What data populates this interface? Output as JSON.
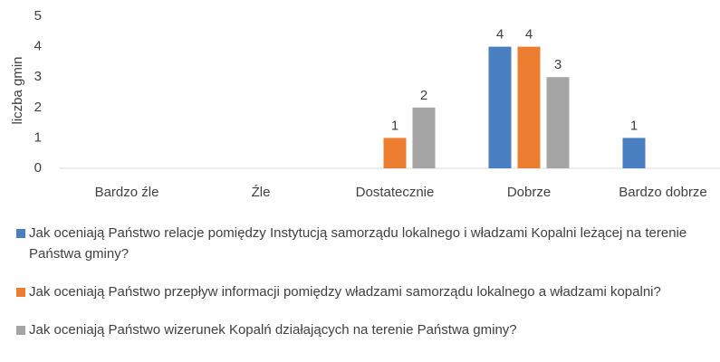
{
  "chart_data": {
    "type": "bar",
    "y_label": "liczba gmin",
    "categories": [
      "Bardzo źle",
      "Źle",
      "Dostatecznie",
      "Dobrze",
      "Bardzo dobrze"
    ],
    "series": [
      {
        "name": "Jak oceniają Państwo relacje pomiędzy Instytucją samorządu lokalnego i władzami Kopalni leżącej na terenie Państwa gminy?",
        "color": "#4a7fc1",
        "values": [
          0,
          0,
          0,
          4,
          1
        ]
      },
      {
        "name": "Jak oceniają Państwo przepływ informacji pomiędzy władzami samorządu lokalnego a władzami kopalni?",
        "color": "#ed7d31",
        "values": [
          0,
          0,
          1,
          4,
          0
        ]
      },
      {
        "name": "Jak oceniają Państwo wizerunek Kopalń działających na terenie Państwa gminy?",
        "color": "#a5a5a5",
        "values": [
          0,
          0,
          2,
          3,
          0
        ]
      }
    ],
    "ylim": [
      0,
      5
    ],
    "yticks": [
      0,
      1,
      2,
      3,
      4,
      5
    ],
    "grid": false,
    "legend": "bottom"
  }
}
